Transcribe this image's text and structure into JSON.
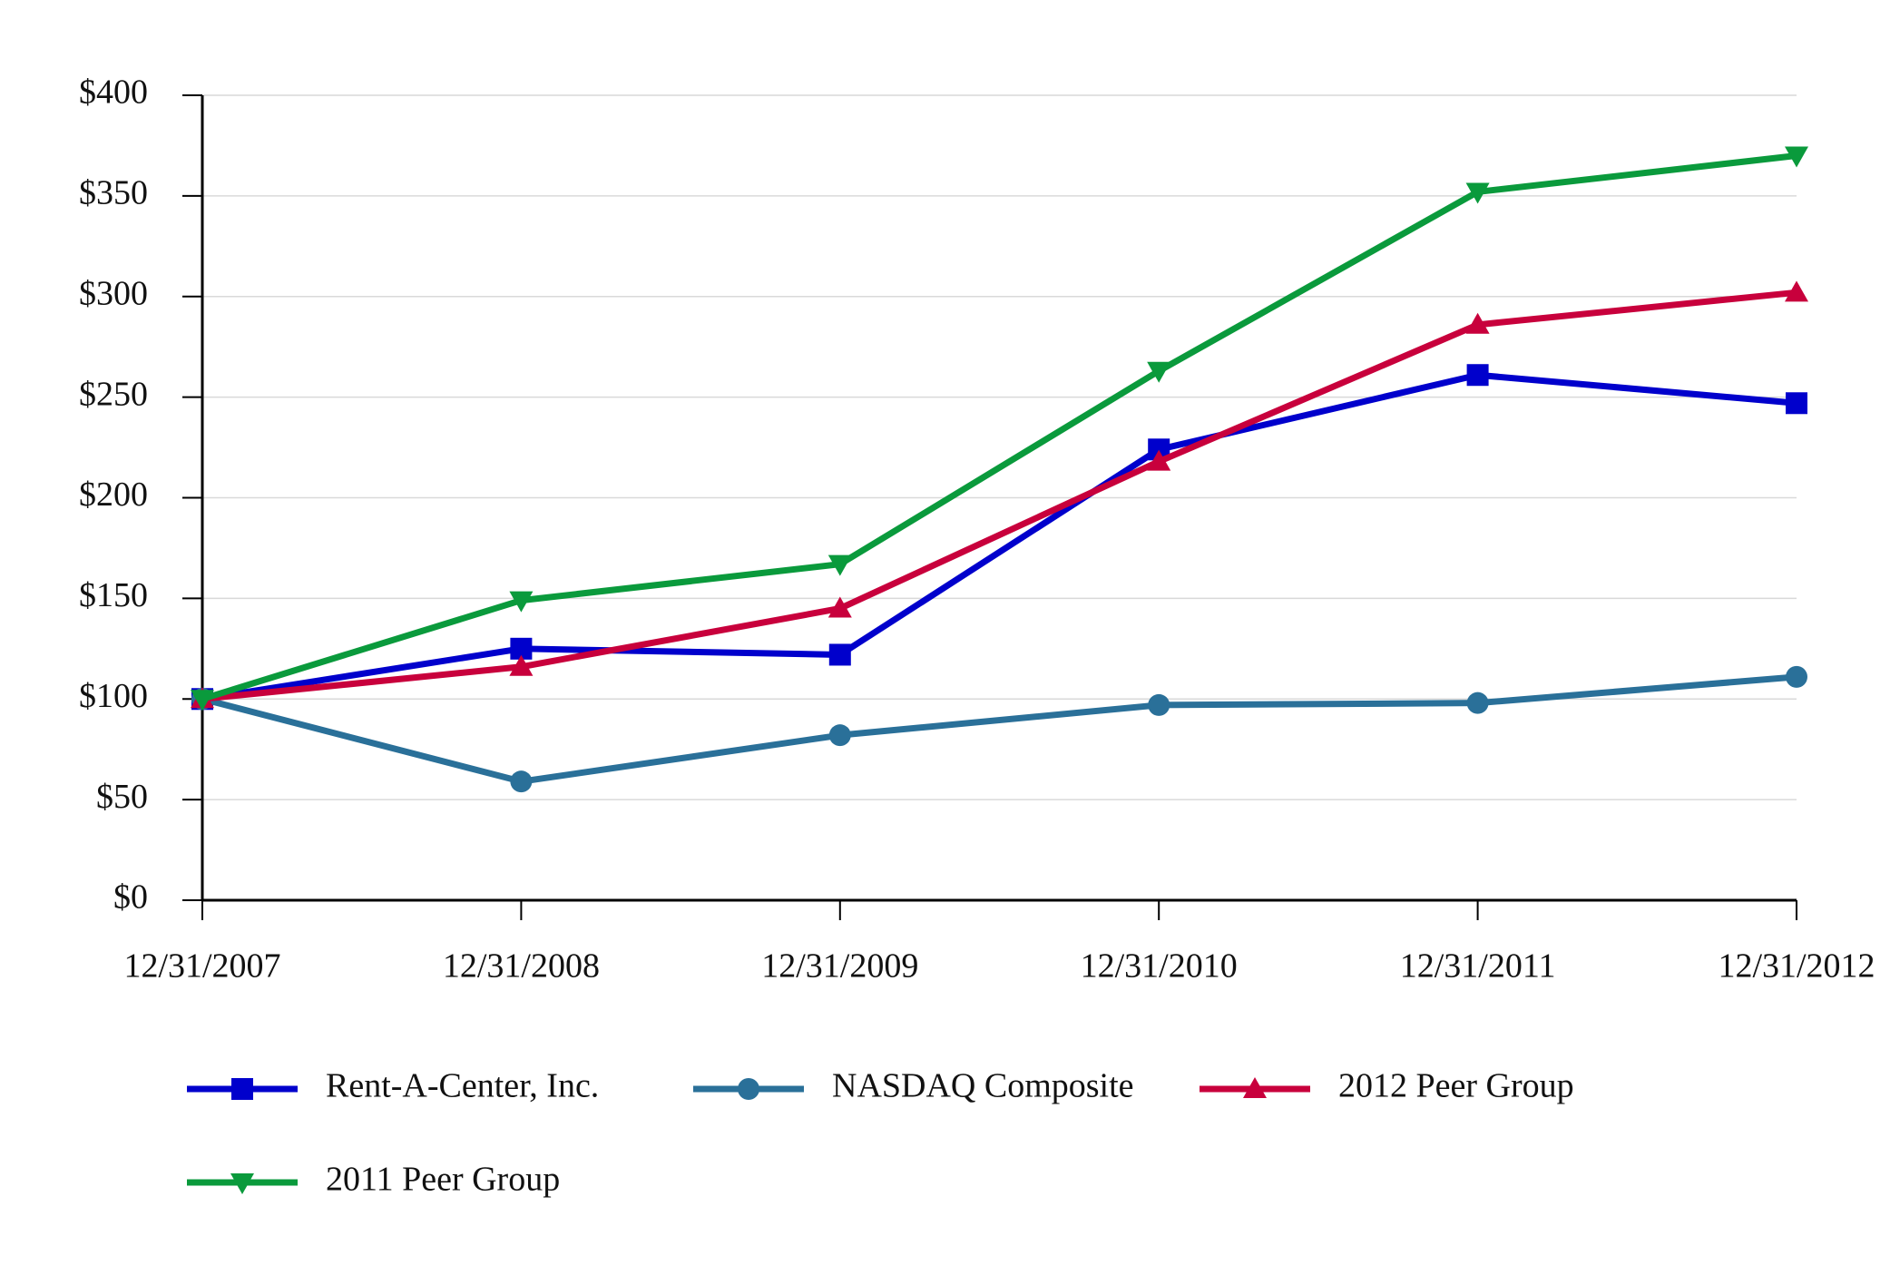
{
  "chart_data": {
    "type": "line",
    "categories": [
      "12/31/2007",
      "12/31/2008",
      "12/31/2009",
      "12/31/2010",
      "12/31/2011",
      "12/31/2012"
    ],
    "series": [
      {
        "name": "Rent-A-Center, Inc.",
        "color": "#0000cc",
        "marker": "square",
        "values": [
          100,
          125,
          122,
          224,
          261,
          247
        ]
      },
      {
        "name": "NASDAQ Composite",
        "color": "#2a7099",
        "marker": "circle",
        "values": [
          100,
          59,
          82,
          97,
          98,
          111
        ]
      },
      {
        "name": "2012 Peer Group",
        "color": "#c8003c",
        "marker": "triangle-up",
        "values": [
          100,
          116,
          145,
          218,
          286,
          302
        ]
      },
      {
        "name": "2011 Peer Group",
        "color": "#0a9a3c",
        "marker": "triangle-down",
        "values": [
          100,
          149,
          167,
          263,
          352,
          370
        ]
      }
    ],
    "ylim": [
      0,
      400
    ],
    "yticks": [
      {
        "value": 0,
        "label": "$0"
      },
      {
        "value": 50,
        "label": "$50"
      },
      {
        "value": 100,
        "label": "$100"
      },
      {
        "value": 150,
        "label": "$150"
      },
      {
        "value": 200,
        "label": "$200"
      },
      {
        "value": 250,
        "label": "$250"
      },
      {
        "value": 300,
        "label": "$300"
      },
      {
        "value": 350,
        "label": "$350"
      },
      {
        "value": 400,
        "label": "$400"
      }
    ],
    "grid": true
  }
}
